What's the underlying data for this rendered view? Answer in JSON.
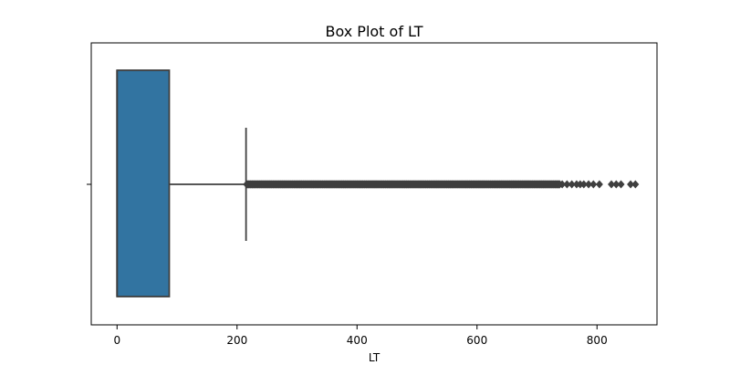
{
  "chart_data": {
    "type": "box",
    "title": "Box Plot of LT",
    "xlabel": "LT",
    "ylabel": "",
    "xlim": [
      -43,
      900
    ],
    "xticks": [
      0,
      200,
      400,
      600,
      800
    ],
    "box": {
      "min": 0,
      "q1": 0,
      "median": 0,
      "q3": 87,
      "whisker_high": 215,
      "outliers_range": [
        216,
        738
      ],
      "outliers_sparse": [
        742,
        750,
        758,
        766,
        772,
        778,
        786,
        794,
        804,
        824,
        832,
        840,
        856,
        864
      ]
    },
    "colors": {
      "box_fill": "#3274a1",
      "box_edge": "#3f3f3f",
      "outlier": "#3f3f3f",
      "axis": "#000000"
    }
  }
}
